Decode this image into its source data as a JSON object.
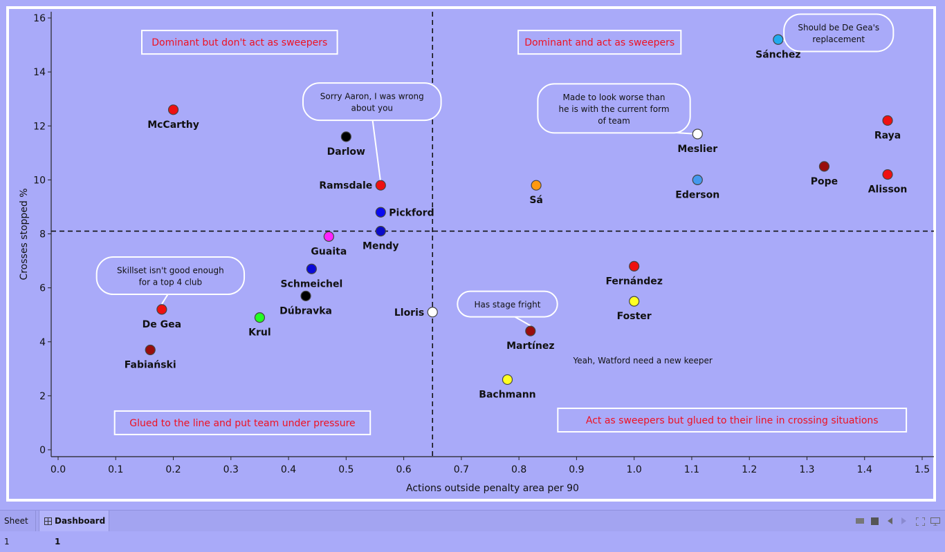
{
  "chart_data": {
    "type": "scatter",
    "xlabel": "Actions outside penalty area per 90",
    "ylabel": "Crosses stopped %",
    "xlim": [
      0,
      1.5
    ],
    "ylim": [
      0,
      16
    ],
    "xticks": [
      "0.0",
      "0.1",
      "0.2",
      "0.3",
      "0.4",
      "0.5",
      "0.6",
      "0.7",
      "0.8",
      "0.9",
      "1.0",
      "1.1",
      "1.2",
      "1.3",
      "1.4",
      "1.5"
    ],
    "yticks": [
      "0",
      "2",
      "4",
      "6",
      "8",
      "10",
      "12",
      "14",
      "16"
    ],
    "x_reference": 0.65,
    "y_reference": 8.1,
    "points": [
      {
        "name": "McCarthy",
        "x": 0.2,
        "y": 12.6,
        "color": "#ee1111",
        "label_pos": "below"
      },
      {
        "name": "Darlow",
        "x": 0.5,
        "y": 11.6,
        "color": "#000000",
        "label_pos": "below"
      },
      {
        "name": "Ramsdale",
        "x": 0.56,
        "y": 9.8,
        "color": "#ee1111",
        "label_pos": "left"
      },
      {
        "name": "Pickford",
        "x": 0.56,
        "y": 8.8,
        "color": "#0a0af0",
        "label_pos": "right"
      },
      {
        "name": "Mendy",
        "x": 0.56,
        "y": 8.1,
        "color": "#0a0ac8",
        "label_pos": "below"
      },
      {
        "name": "Guaita",
        "x": 0.47,
        "y": 7.9,
        "color": "#ff22ff",
        "label_pos": "below"
      },
      {
        "name": "Schmeichel",
        "x": 0.44,
        "y": 6.7,
        "color": "#0a0ad8",
        "label_pos": "below"
      },
      {
        "name": "Dúbravka",
        "x": 0.43,
        "y": 5.7,
        "color": "#000000",
        "label_pos": "below"
      },
      {
        "name": "Krul",
        "x": 0.35,
        "y": 4.9,
        "color": "#22ff22",
        "label_pos": "below"
      },
      {
        "name": "De Gea",
        "x": 0.18,
        "y": 5.2,
        "color": "#ee1111",
        "label_pos": "below"
      },
      {
        "name": "Fabiański",
        "x": 0.16,
        "y": 3.7,
        "color": "#990d0d",
        "label_pos": "below"
      },
      {
        "name": "Lloris",
        "x": 0.65,
        "y": 5.1,
        "color": "#ffffff",
        "label_pos": "left"
      },
      {
        "name": "Sá",
        "x": 0.83,
        "y": 9.8,
        "color": "#ff9911",
        "label_pos": "below"
      },
      {
        "name": "Ederson",
        "x": 1.11,
        "y": 10.0,
        "color": "#4499ee",
        "label_pos": "below"
      },
      {
        "name": "Meslier",
        "x": 1.11,
        "y": 11.7,
        "color": "#ffffff",
        "label_pos": "below"
      },
      {
        "name": "Sánchez",
        "x": 1.25,
        "y": 15.2,
        "color": "#22aaee",
        "label_pos": "below"
      },
      {
        "name": "Raya",
        "x": 1.44,
        "y": 12.2,
        "color": "#ee1111",
        "label_pos": "below"
      },
      {
        "name": "Pope",
        "x": 1.33,
        "y": 10.5,
        "color": "#990d0d",
        "label_pos": "below"
      },
      {
        "name": "Alisson",
        "x": 1.44,
        "y": 10.2,
        "color": "#ee1111",
        "label_pos": "below"
      },
      {
        "name": "Fernández",
        "x": 1.0,
        "y": 6.8,
        "color": "#ee1111",
        "label_pos": "below"
      },
      {
        "name": "Foster",
        "x": 1.0,
        "y": 5.5,
        "color": "#ffff22",
        "label_pos": "below"
      },
      {
        "name": "Martínez",
        "x": 0.82,
        "y": 4.4,
        "color": "#990d0d",
        "label_pos": "below"
      },
      {
        "name": "Bachmann",
        "x": 0.78,
        "y": 2.6,
        "color": "#ffff22",
        "label_pos": "below"
      }
    ],
    "quadrant_labels": [
      {
        "text": "Dominant but don't act as sweepers",
        "x": 0.315,
        "y": 15.1
      },
      {
        "text": "Dominant and act as sweepers",
        "x": 0.94,
        "y": 15.1
      },
      {
        "text": "Glued to the line and put team under pressure",
        "x": 0.32,
        "y": 1.0
      },
      {
        "text": "Act as sweepers but glued to their line in crossing situations",
        "x": 1.17,
        "y": 1.1
      }
    ],
    "callouts": [
      {
        "lines": [
          "Should be De Gea's",
          "replacement"
        ],
        "x": 1.355,
        "y": 15.45,
        "target_x": 1.25,
        "target_y": 15.2
      },
      {
        "lines": [
          "Made to look worse than",
          "he is with the current form",
          "of team"
        ],
        "x": 0.965,
        "y": 12.65,
        "target_x": 1.11,
        "target_y": 11.7
      },
      {
        "lines": [
          "Sorry Aaron, I was wrong",
          "about you"
        ],
        "x": 0.545,
        "y": 12.9,
        "target_x": 0.56,
        "target_y": 9.9
      },
      {
        "lines": [
          "Skillset isn't good enough",
          "for a top 4 club"
        ],
        "x": 0.195,
        "y": 6.45,
        "target_x": 0.18,
        "target_y": 5.4
      },
      {
        "lines": [
          "Has stage fright"
        ],
        "x": 0.78,
        "y": 5.4,
        "target_x": 0.82,
        "target_y": 4.6
      }
    ],
    "annotations": [
      {
        "text": "Yeah, Watford need a new keeper",
        "x": 1.015,
        "y": 3.3
      }
    ],
    "colors": {
      "background": "#a9aaf9",
      "quadrant_text": "#ee1122"
    }
  },
  "tabs": {
    "sheet1": "Sheet 1",
    "dashboard1": "Dashboard 1"
  }
}
